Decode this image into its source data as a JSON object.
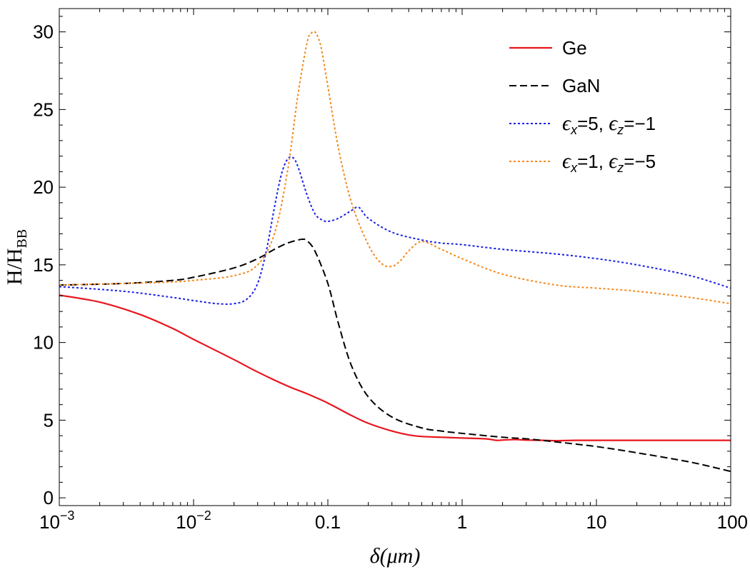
{
  "chart_data": {
    "type": "line",
    "title": "",
    "xlabel": "δ(μm)",
    "ylabel": "H/H_BB",
    "xscale": "log",
    "xlim": [
      0.001,
      100
    ],
    "ylim": [
      -0.5,
      31.5
    ],
    "x_ticks": [
      {
        "value": 0.001,
        "base": "10",
        "exp": "−3"
      },
      {
        "value": 0.01,
        "base": "10",
        "exp": "−2"
      },
      {
        "value": 0.1,
        "label": "0.1"
      },
      {
        "value": 1,
        "label": "1"
      },
      {
        "value": 10,
        "label": "10"
      },
      {
        "value": 100,
        "label": "100"
      }
    ],
    "y_ticks": [
      {
        "value": 0,
        "label": "0"
      },
      {
        "value": 5,
        "label": "5"
      },
      {
        "value": 10,
        "label": "10"
      },
      {
        "value": 15,
        "label": "15"
      },
      {
        "value": 20,
        "label": "20"
      },
      {
        "value": 25,
        "label": "25"
      },
      {
        "value": 30,
        "label": "30"
      }
    ],
    "legend_position": "top-right",
    "series": [
      {
        "name": "Ge",
        "legend_label": "Ge",
        "color": "#e8161e",
        "dash": "solid",
        "x": [
          0.001,
          0.002,
          0.004,
          0.007,
          0.01,
          0.02,
          0.03,
          0.05,
          0.07,
          0.1,
          0.15,
          0.2,
          0.3,
          0.4,
          0.5,
          0.7,
          1,
          1.5,
          1.8,
          2,
          2.5,
          3,
          4,
          5,
          7,
          10,
          20,
          50,
          100
        ],
        "y": [
          13.05,
          12.6,
          11.8,
          10.9,
          10.2,
          8.9,
          8.1,
          7.2,
          6.7,
          6.1,
          5.3,
          4.8,
          4.3,
          4.05,
          3.95,
          3.9,
          3.85,
          3.8,
          3.7,
          3.72,
          3.75,
          3.72,
          3.7,
          3.68,
          3.7,
          3.7,
          3.7,
          3.7,
          3.7
        ]
      },
      {
        "name": "GaN",
        "legend_label": "GaN",
        "color": "#000000",
        "dash": "dashed",
        "x": [
          0.001,
          0.003,
          0.007,
          0.01,
          0.02,
          0.03,
          0.04,
          0.05,
          0.06,
          0.065,
          0.07,
          0.08,
          0.1,
          0.12,
          0.15,
          0.2,
          0.3,
          0.5,
          0.7,
          1,
          2,
          3,
          5,
          10,
          20,
          50,
          100
        ],
        "y": [
          13.7,
          13.8,
          14.0,
          14.2,
          14.8,
          15.4,
          16.0,
          16.4,
          16.6,
          16.65,
          16.55,
          15.9,
          13.8,
          11.2,
          8.5,
          6.5,
          5.2,
          4.5,
          4.3,
          4.15,
          3.9,
          3.8,
          3.6,
          3.3,
          2.9,
          2.3,
          1.7
        ]
      },
      {
        "name": "eps_x=5, eps_z=-1",
        "legend_label": "ϵx=5, ϵz=−1",
        "legend_parts": {
          "a": "ϵ",
          "a_sub": "x",
          "b": "=5, ",
          "c": "ϵ",
          "c_sub": "z",
          "d": "=−1"
        },
        "color": "#1a1ee6",
        "dash": "dotted",
        "x": [
          0.001,
          0.003,
          0.007,
          0.01,
          0.015,
          0.02,
          0.025,
          0.03,
          0.035,
          0.04,
          0.045,
          0.05,
          0.055,
          0.06,
          0.07,
          0.08,
          0.09,
          0.1,
          0.12,
          0.15,
          0.17,
          0.2,
          0.3,
          0.5,
          0.7,
          1,
          2,
          5,
          10,
          20,
          50,
          100
        ],
        "y": [
          13.6,
          13.3,
          12.9,
          12.7,
          12.5,
          12.5,
          12.8,
          13.8,
          16.0,
          18.7,
          20.8,
          21.8,
          21.9,
          21.3,
          19.5,
          18.3,
          17.9,
          17.8,
          18.0,
          18.5,
          18.7,
          18.0,
          17.1,
          16.6,
          16.4,
          16.3,
          16.0,
          15.7,
          15.4,
          15.0,
          14.3,
          13.5
        ]
      },
      {
        "name": "eps_x=1, eps_z=-5",
        "legend_label": "ϵx=1, ϵz=−5",
        "legend_parts": {
          "a": "ϵ",
          "a_sub": "x",
          "b": "=1, ",
          "c": "ϵ",
          "c_sub": "z",
          "d": "=−5"
        },
        "color": "#f5891c",
        "dash": "dotted",
        "x": [
          0.001,
          0.003,
          0.007,
          0.01,
          0.02,
          0.03,
          0.04,
          0.05,
          0.06,
          0.07,
          0.075,
          0.08,
          0.085,
          0.09,
          0.1,
          0.12,
          0.15,
          0.2,
          0.25,
          0.3,
          0.35,
          0.4,
          0.5,
          0.7,
          1,
          2,
          5,
          10,
          20,
          50,
          100
        ],
        "y": [
          13.7,
          13.8,
          13.9,
          14.0,
          14.3,
          15.0,
          17.0,
          21.0,
          26.0,
          29.3,
          29.9,
          30.0,
          29.6,
          28.8,
          26.5,
          22.5,
          19.0,
          16.3,
          15.1,
          14.9,
          15.3,
          15.9,
          16.5,
          16.0,
          15.4,
          14.4,
          13.7,
          13.5,
          13.3,
          12.9,
          12.5
        ]
      }
    ]
  }
}
